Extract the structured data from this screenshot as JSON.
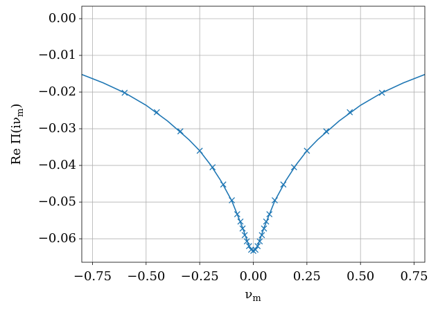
{
  "chart_data": {
    "type": "line",
    "xlabel": [
      "ν",
      "m"
    ],
    "ylabel": [
      "Re Π(iν",
      "m",
      ")"
    ],
    "xlim": [
      -0.8,
      0.8
    ],
    "ylim": [
      -0.0664,
      0.0034
    ],
    "xticks": [
      {
        "value": -0.75,
        "label": "−0.75"
      },
      {
        "value": -0.5,
        "label": "−0.50"
      },
      {
        "value": -0.25,
        "label": "−0.25"
      },
      {
        "value": 0,
        "label": "0.00"
      },
      {
        "value": 0.25,
        "label": "0.25"
      },
      {
        "value": 0.5,
        "label": "0.50"
      },
      {
        "value": 0.75,
        "label": "0.75"
      }
    ],
    "yticks": [
      {
        "value": 0,
        "label": "0.00"
      },
      {
        "value": -0.01,
        "label": "−0.01"
      },
      {
        "value": -0.02,
        "label": "−0.02"
      },
      {
        "value": -0.03,
        "label": "−0.03"
      },
      {
        "value": -0.04,
        "label": "−0.04"
      },
      {
        "value": -0.05,
        "label": "−0.05"
      },
      {
        "value": -0.06,
        "label": "−0.06"
      }
    ],
    "grid": true,
    "series": [
      {
        "style": "line",
        "color": "#1f77b4",
        "x": [
          -0.8,
          -0.7,
          -0.6,
          -0.5,
          -0.4,
          -0.3,
          -0.25,
          -0.2,
          -0.15,
          -0.1,
          -0.05,
          -0.02,
          0,
          0.02,
          0.05,
          0.1,
          0.15,
          0.2,
          0.25,
          0.3,
          0.4,
          0.5,
          0.6,
          0.7,
          0.8
        ],
        "values": [
          -0.0152,
          -0.0175,
          -0.0202,
          -0.0236,
          -0.0279,
          -0.033,
          -0.036,
          -0.0398,
          -0.0443,
          -0.0497,
          -0.057,
          -0.062,
          -0.0633,
          -0.062,
          -0.057,
          -0.0497,
          -0.0443,
          -0.0398,
          -0.036,
          -0.033,
          -0.0279,
          -0.0236,
          -0.0202,
          -0.0175,
          -0.0152
        ]
      },
      {
        "style": "marker",
        "color": "#1f77b4",
        "x": [
          -0.6,
          -0.45,
          -0.34,
          -0.25,
          -0.19,
          -0.14,
          -0.1,
          -0.075,
          -0.06,
          -0.05,
          -0.04,
          -0.03,
          -0.02,
          -0.01,
          0,
          0.01,
          0.02,
          0.03,
          0.04,
          0.05,
          0.06,
          0.075,
          0.1,
          0.14,
          0.19,
          0.25,
          0.34,
          0.45,
          0.6
        ],
        "values": [
          -0.0202,
          -0.0255,
          -0.0307,
          -0.036,
          -0.0405,
          -0.0452,
          -0.0495,
          -0.0533,
          -0.0553,
          -0.0572,
          -0.059,
          -0.0607,
          -0.062,
          -0.063,
          -0.0633,
          -0.063,
          -0.062,
          -0.0607,
          -0.059,
          -0.0572,
          -0.0553,
          -0.0533,
          -0.0495,
          -0.0452,
          -0.0405,
          -0.036,
          -0.0307,
          -0.0255,
          -0.0202
        ]
      }
    ]
  }
}
